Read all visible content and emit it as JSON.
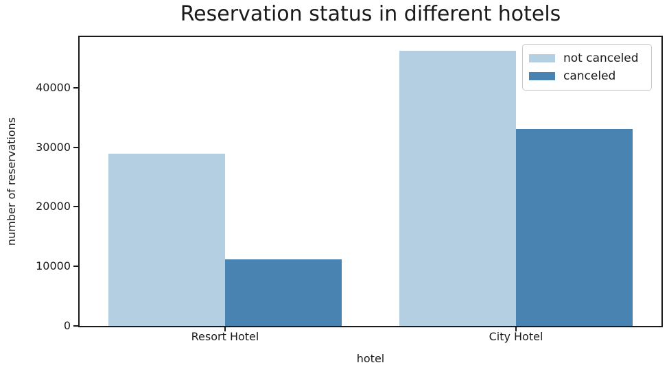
{
  "chart_data": {
    "type": "bar",
    "title": "Reservation status in different hotels",
    "xlabel": "hotel",
    "ylabel": "number of reservations",
    "categories": [
      "Resort Hotel",
      "City Hotel"
    ],
    "series": [
      {
        "name": "not canceled",
        "color": "#b4cfe2",
        "values": [
          28938,
          46228
        ]
      },
      {
        "name": "canceled",
        "color": "#4883b1",
        "values": [
          11122,
          33102
        ]
      }
    ],
    "ylim": [
      0,
      48500
    ],
    "yticks": [
      0,
      10000,
      20000,
      30000,
      40000
    ],
    "legend_position": "upper right",
    "grid": false,
    "colors": {
      "not_canceled": "#b4cfe2",
      "canceled": "#4883b1",
      "text": "#1a1a1a",
      "spine": "#1a1a1a",
      "legend_border": "#c9c9c9"
    }
  }
}
